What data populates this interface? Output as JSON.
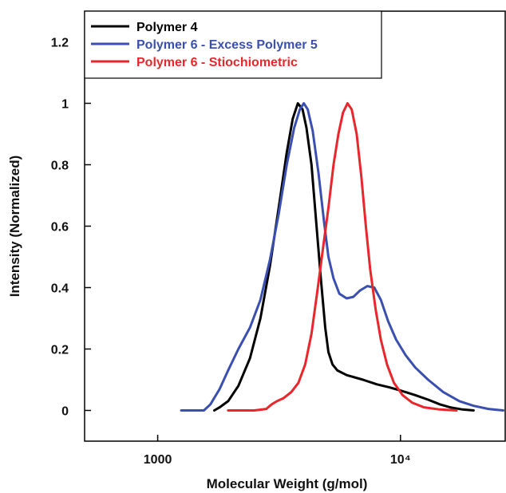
{
  "chart_data": {
    "type": "line",
    "xlabel": "Molecular Weight (g/mol)",
    "ylabel": "Intensity (Normalized)",
    "x_scale": "log",
    "xlim": [
      500,
      27000
    ],
    "ylim": [
      -0.1,
      1.3
    ],
    "x_ticks": [
      {
        "value": 1000,
        "label": "1000"
      },
      {
        "value": 10000,
        "label": "10⁴"
      }
    ],
    "y_ticks": [
      {
        "value": 0,
        "label": "0"
      },
      {
        "value": 0.2,
        "label": "0.2"
      },
      {
        "value": 0.4,
        "label": "0.4"
      },
      {
        "value": 0.6,
        "label": "0.6"
      },
      {
        "value": 0.8,
        "label": "0.8"
      },
      {
        "value": 1,
        "label": "1"
      },
      {
        "value": 1.2,
        "label": "1.2"
      }
    ],
    "grid": false,
    "legend_position": "top-left",
    "series": [
      {
        "name": "Polymer 4",
        "color": "#000000",
        "points": [
          [
            1710,
            0.0
          ],
          [
            1800,
            0.01
          ],
          [
            1950,
            0.03
          ],
          [
            2150,
            0.08
          ],
          [
            2400,
            0.17
          ],
          [
            2650,
            0.3
          ],
          [
            2900,
            0.47
          ],
          [
            3150,
            0.66
          ],
          [
            3400,
            0.84
          ],
          [
            3600,
            0.95
          ],
          [
            3780,
            1.0
          ],
          [
            3950,
            0.98
          ],
          [
            4100,
            0.92
          ],
          [
            4300,
            0.8
          ],
          [
            4500,
            0.61
          ],
          [
            4700,
            0.43
          ],
          [
            4900,
            0.27
          ],
          [
            5050,
            0.19
          ],
          [
            5250,
            0.15
          ],
          [
            5500,
            0.13
          ],
          [
            6000,
            0.115
          ],
          [
            7000,
            0.1
          ],
          [
            8000,
            0.085
          ],
          [
            9000,
            0.075
          ],
          [
            10000,
            0.065
          ],
          [
            11500,
            0.05
          ],
          [
            13000,
            0.035
          ],
          [
            14500,
            0.02
          ],
          [
            16000,
            0.01
          ],
          [
            18000,
            0.003
          ],
          [
            20000,
            0.0
          ]
        ]
      },
      {
        "name": "Polymer 6 - Excess Polymer 5",
        "color": "#3a4fb0",
        "points": [
          [
            1250,
            0.0
          ],
          [
            1550,
            0.0
          ],
          [
            1650,
            0.02
          ],
          [
            1800,
            0.07
          ],
          [
            1950,
            0.13
          ],
          [
            2150,
            0.2
          ],
          [
            2400,
            0.27
          ],
          [
            2650,
            0.36
          ],
          [
            2900,
            0.49
          ],
          [
            3150,
            0.64
          ],
          [
            3400,
            0.8
          ],
          [
            3650,
            0.92
          ],
          [
            3850,
            0.98
          ],
          [
            4000,
            1.0
          ],
          [
            4150,
            0.98
          ],
          [
            4350,
            0.91
          ],
          [
            4600,
            0.77
          ],
          [
            4850,
            0.61
          ],
          [
            5050,
            0.5
          ],
          [
            5300,
            0.43
          ],
          [
            5600,
            0.38
          ],
          [
            6000,
            0.365
          ],
          [
            6400,
            0.37
          ],
          [
            6800,
            0.39
          ],
          [
            7300,
            0.405
          ],
          [
            7800,
            0.4
          ],
          [
            8300,
            0.36
          ],
          [
            8900,
            0.29
          ],
          [
            9600,
            0.23
          ],
          [
            10500,
            0.18
          ],
          [
            11500,
            0.14
          ],
          [
            13000,
            0.1
          ],
          [
            15000,
            0.06
          ],
          [
            17500,
            0.03
          ],
          [
            20000,
            0.015
          ],
          [
            23000,
            0.005
          ],
          [
            26500,
            0.0
          ]
        ]
      },
      {
        "name": "Polymer 6 - Stiochiometric",
        "color": "#e8262b",
        "points": [
          [
            1950,
            0.0
          ],
          [
            2500,
            0.0
          ],
          [
            2800,
            0.005
          ],
          [
            2950,
            0.02
          ],
          [
            3100,
            0.03
          ],
          [
            3300,
            0.04
          ],
          [
            3550,
            0.06
          ],
          [
            3800,
            0.09
          ],
          [
            4050,
            0.15
          ],
          [
            4300,
            0.25
          ],
          [
            4550,
            0.39
          ],
          [
            4800,
            0.53
          ],
          [
            5050,
            0.66
          ],
          [
            5300,
            0.8
          ],
          [
            5550,
            0.9
          ],
          [
            5800,
            0.97
          ],
          [
            6050,
            1.0
          ],
          [
            6300,
            0.98
          ],
          [
            6600,
            0.9
          ],
          [
            6900,
            0.76
          ],
          [
            7200,
            0.6
          ],
          [
            7500,
            0.46
          ],
          [
            7900,
            0.33
          ],
          [
            8300,
            0.23
          ],
          [
            8800,
            0.15
          ],
          [
            9400,
            0.09
          ],
          [
            10200,
            0.05
          ],
          [
            11200,
            0.025
          ],
          [
            12500,
            0.01
          ],
          [
            14500,
            0.003
          ],
          [
            17000,
            0.0
          ]
        ]
      }
    ]
  }
}
